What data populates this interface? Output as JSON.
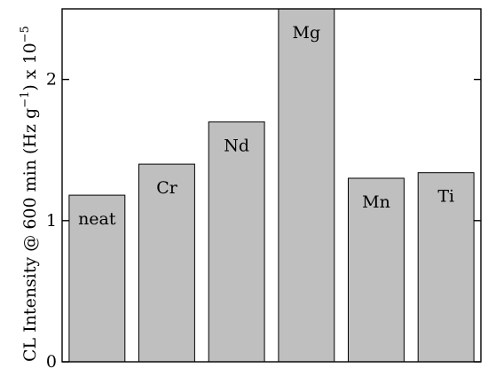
{
  "chart_data": {
    "type": "bar",
    "categories": [
      "neat",
      "Cr",
      "Nd",
      "Mg",
      "Mn",
      "Ti"
    ],
    "values": [
      1.18,
      1.4,
      1.7,
      2.5,
      1.3,
      1.34
    ],
    "title": "",
    "xlabel": "",
    "ylabel": {
      "main": "CL Intensity @ 600 min (Hz g",
      "exp1": "−1",
      "mid": ") x 10",
      "exp2": "−5"
    },
    "ylim": [
      0,
      2.5
    ],
    "yticks": [
      "0",
      "1",
      "2"
    ],
    "grid": false,
    "bar_color": "#bfbfbf"
  }
}
